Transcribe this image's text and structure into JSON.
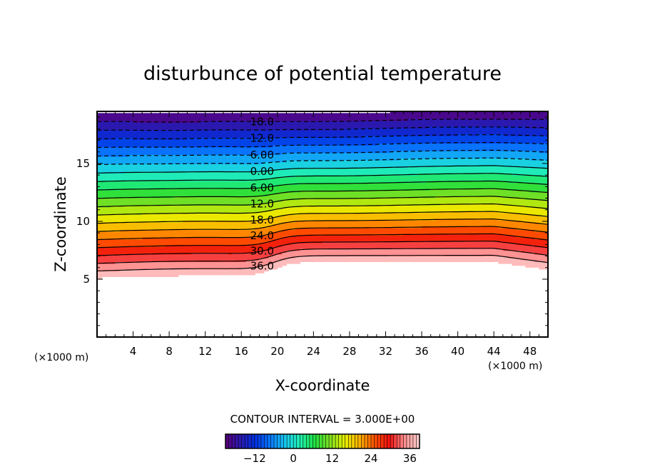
{
  "chart_data": {
    "type": "contour",
    "title": "disturbunce of potential temperature",
    "xlabel": "X-coordinate",
    "ylabel": "Z-coordinate",
    "x_unit": "(×1000 m)",
    "x_unit_right": "(×1000 m)",
    "xlim": [
      0,
      50
    ],
    "ylim": [
      0,
      19.5
    ],
    "x_ticks": [
      4,
      8,
      12,
      16,
      20,
      24,
      28,
      32,
      36,
      40,
      44,
      48
    ],
    "y_ticks": [
      5,
      10,
      15
    ],
    "contour_interval_text": "CONTOUR INTERVAL = 3.000E+00",
    "field_range": [
      -21,
      39
    ],
    "negative_contours": "dashed",
    "contour_labels": [
      {
        "text": "18.0",
        "value": -18
      },
      {
        "text": "12.0",
        "value": -12
      },
      {
        "text": "6.00",
        "value": -6
      },
      {
        "text": "0.00",
        "value": 0
      },
      {
        "text": "6.00",
        "value": 6
      },
      {
        "text": "12.0",
        "value": 12
      },
      {
        "text": "18.0",
        "value": 18
      },
      {
        "text": "24.0",
        "value": 24
      },
      {
        "text": "30.0",
        "value": 30
      },
      {
        "text": "36.0",
        "value": 36
      }
    ],
    "colorbar_ticks": [
      "−12",
      "0",
      "12",
      "24",
      "36"
    ],
    "colorbar_tick_values": [
      -12,
      0,
      12,
      24,
      36
    ],
    "colorbar_range": [
      -21,
      39
    ],
    "colormap": [
      "#5a007a",
      "#2a1ab0",
      "#0030e0",
      "#0a78ff",
      "#18c8f0",
      "#20f0b0",
      "#20e040",
      "#80e020",
      "#e8f000",
      "#ffb000",
      "#ff5000",
      "#f01010",
      "#ff9090",
      "#ffd0d0"
    ]
  }
}
